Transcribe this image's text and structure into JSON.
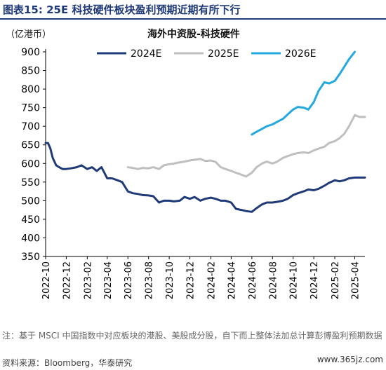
{
  "figure_title": "图表15:  25E 科技硬件板块盈利预期近期有所下行",
  "unit_label": "（亿港币）",
  "note": "注：基于 MSCI 中国指数中对应板块的港股、美股成分股，自下而上整体法加总计算彭博盈利预期数据",
  "source": "资料来源：Bloomberg，华泰研究",
  "watermark": "www.365jz.com",
  "chart_data": {
    "type": "line",
    "title": "海外中资股-科技硬件",
    "ylim": [
      350,
      900
    ],
    "yticks": [
      350,
      400,
      450,
      500,
      550,
      600,
      650,
      700,
      750,
      800,
      850,
      900
    ],
    "x_ticks": [
      "2022-10",
      "2022-12",
      "2023-02",
      "2023-04",
      "2023-06",
      "2023-08",
      "2023-10",
      "2023-12",
      "2024-02",
      "2024-04",
      "2024-06",
      "2024-08",
      "2024-10",
      "2024-12",
      "2025-02",
      "2025-04"
    ],
    "legend_position": "top",
    "grid": false,
    "series": [
      {
        "name": "2024E",
        "color": "#1f3a78",
        "x": [
          "2022-10-01",
          "2022-10-08",
          "2022-10-15",
          "2022-10-22",
          "2022-11-01",
          "2022-11-10",
          "2022-11-20",
          "2022-12-01",
          "2022-12-15",
          "2023-01-01",
          "2023-01-15",
          "2023-02-01",
          "2023-02-15",
          "2023-03-01",
          "2023-03-15",
          "2023-04-01",
          "2023-04-15",
          "2023-05-01",
          "2023-05-15",
          "2023-06-01",
          "2023-06-15",
          "2023-07-01",
          "2023-07-15",
          "2023-08-01",
          "2023-08-15",
          "2023-09-01",
          "2023-09-15",
          "2023-10-01",
          "2023-10-15",
          "2023-11-01",
          "2023-11-15",
          "2023-12-01",
          "2023-12-15",
          "2024-01-01",
          "2024-01-15",
          "2024-02-01",
          "2024-02-15",
          "2024-03-01",
          "2024-03-15",
          "2024-04-01",
          "2024-04-15",
          "2024-05-01",
          "2024-05-15",
          "2024-06-01",
          "2024-06-15",
          "2024-07-01",
          "2024-07-15",
          "2024-08-01",
          "2024-08-15",
          "2024-09-01",
          "2024-09-15",
          "2024-10-01",
          "2024-10-15",
          "2024-11-01",
          "2024-11-15",
          "2024-12-01",
          "2024-12-15",
          "2025-01-01",
          "2025-01-15",
          "2025-02-01",
          "2025-02-15",
          "2025-03-01",
          "2025-03-15",
          "2025-04-01",
          "2025-04-15",
          "2025-05-01"
        ],
        "values": [
          655,
          655,
          640,
          615,
          595,
          590,
          585,
          585,
          587,
          590,
          595,
          585,
          590,
          580,
          590,
          560,
          560,
          555,
          550,
          525,
          520,
          518,
          515,
          514,
          512,
          495,
          500,
          500,
          498,
          500,
          510,
          505,
          510,
          500,
          505,
          508,
          505,
          500,
          500,
          495,
          478,
          475,
          472,
          470,
          480,
          490,
          495,
          495,
          497,
          500,
          505,
          515,
          520,
          525,
          530,
          528,
          532,
          540,
          548,
          555,
          552,
          555,
          560,
          562,
          562,
          562
        ]
      },
      {
        "name": "2025E",
        "color": "#bfbfbf",
        "x": [
          "2023-06-01",
          "2023-06-15",
          "2023-07-01",
          "2023-07-15",
          "2023-08-01",
          "2023-08-15",
          "2023-09-01",
          "2023-09-15",
          "2023-10-01",
          "2023-10-15",
          "2023-11-01",
          "2023-11-15",
          "2023-12-01",
          "2023-12-15",
          "2024-01-01",
          "2024-01-15",
          "2024-02-01",
          "2024-02-15",
          "2024-03-01",
          "2024-03-15",
          "2024-04-01",
          "2024-04-15",
          "2024-05-01",
          "2024-05-15",
          "2024-06-01",
          "2024-06-15",
          "2024-07-01",
          "2024-07-15",
          "2024-08-01",
          "2024-08-15",
          "2024-09-01",
          "2024-09-15",
          "2024-10-01",
          "2024-10-15",
          "2024-11-01",
          "2024-11-15",
          "2024-12-01",
          "2024-12-15",
          "2025-01-01",
          "2025-01-15",
          "2025-02-01",
          "2025-02-15",
          "2025-03-01",
          "2025-03-15",
          "2025-04-01",
          "2025-04-15",
          "2025-05-01"
        ],
        "values": [
          590,
          588,
          585,
          588,
          587,
          590,
          585,
          595,
          598,
          600,
          603,
          605,
          608,
          610,
          612,
          607,
          608,
          604,
          590,
          585,
          580,
          575,
          570,
          565,
          575,
          590,
          600,
          605,
          600,
          605,
          615,
          620,
          625,
          628,
          630,
          628,
          635,
          640,
          645,
          655,
          660,
          668,
          680,
          700,
          730,
          725,
          725
        ]
      },
      {
        "name": "2026E",
        "color": "#23a8e0",
        "x": [
          "2024-06-01",
          "2024-06-15",
          "2024-07-01",
          "2024-07-15",
          "2024-08-01",
          "2024-08-15",
          "2024-09-01",
          "2024-09-15",
          "2024-10-01",
          "2024-10-15",
          "2024-11-01",
          "2024-11-15",
          "2024-12-01",
          "2024-12-15",
          "2025-01-01",
          "2025-01-15",
          "2025-02-01",
          "2025-02-15",
          "2025-03-01",
          "2025-03-15",
          "2025-04-01"
        ],
        "values": [
          678,
          685,
          693,
          700,
          705,
          712,
          720,
          732,
          745,
          752,
          750,
          745,
          765,
          795,
          818,
          815,
          822,
          840,
          860,
          880,
          900
        ]
      }
    ]
  }
}
